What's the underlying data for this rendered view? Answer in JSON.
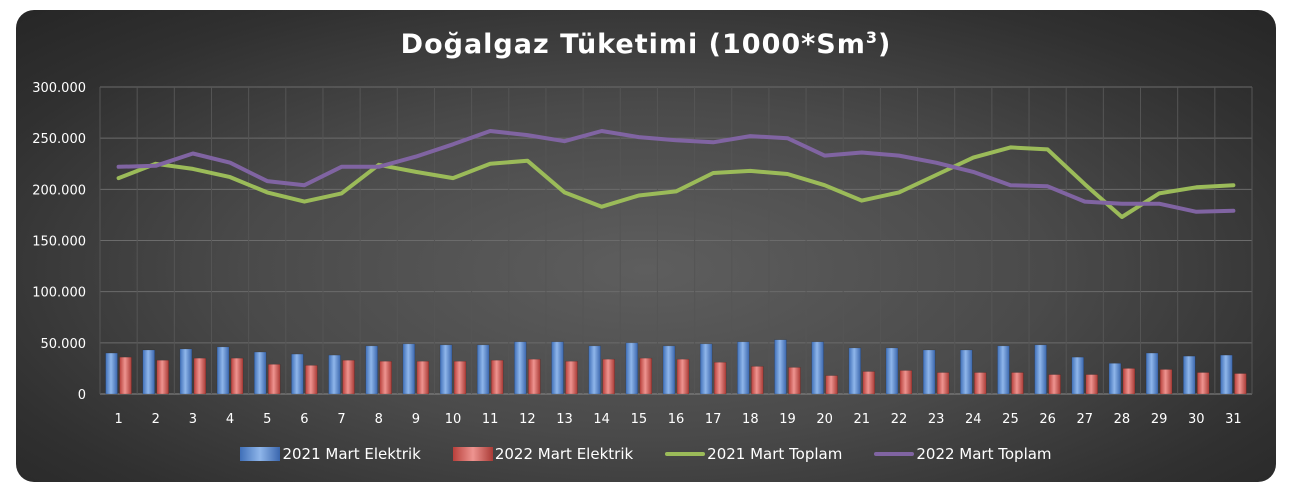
{
  "chart_data": {
    "type": "bar",
    "title": "Doğalgaz Tüketimi (1000*Sm",
    "title_superscript": "3",
    "title_suffix": ")",
    "categories": [
      "1",
      "2",
      "3",
      "4",
      "5",
      "6",
      "7",
      "8",
      "9",
      "10",
      "11",
      "12",
      "13",
      "14",
      "15",
      "16",
      "17",
      "18",
      "19",
      "20",
      "21",
      "22",
      "23",
      "24",
      "25",
      "26",
      "27",
      "28",
      "29",
      "30",
      "31"
    ],
    "y_ticks": [
      "0",
      "50.000",
      "100.000",
      "150.000",
      "200.000",
      "250.000",
      "300.000"
    ],
    "ylim": [
      0,
      300000
    ],
    "grid": true,
    "legend_position": "bottom",
    "series": [
      {
        "name": "2021 Mart Elektrik",
        "type": "bar",
        "color": "#5b8fd6",
        "values": [
          40000,
          43000,
          44000,
          46000,
          41000,
          39000,
          38000,
          47000,
          49000,
          48000,
          48000,
          51000,
          51000,
          47000,
          50000,
          47000,
          49000,
          51000,
          53000,
          51000,
          45000,
          45000,
          43000,
          43000,
          47000,
          48000,
          36000,
          30000,
          40000,
          37000,
          38000
        ]
      },
      {
        "name": "2022 Mart Elektrik",
        "type": "bar",
        "color": "#d9605a",
        "values": [
          36000,
          33000,
          35000,
          35000,
          29000,
          28000,
          33000,
          32000,
          32000,
          32000,
          33000,
          34000,
          32000,
          34000,
          35000,
          34000,
          31000,
          27000,
          26000,
          18000,
          22000,
          23000,
          21000,
          21000,
          21000,
          19000,
          19000,
          25000,
          24000,
          21000,
          20000
        ]
      },
      {
        "name": "2021 Mart Toplam",
        "type": "line",
        "color": "#9bbb59",
        "values": [
          211000,
          225000,
          220000,
          212000,
          197000,
          188000,
          196000,
          224000,
          217000,
          211000,
          225000,
          228000,
          197000,
          183000,
          194000,
          198000,
          216000,
          218000,
          215000,
          204000,
          189000,
          197000,
          214000,
          231000,
          241000,
          239000,
          205000,
          173000,
          196000,
          202000,
          204000
        ]
      },
      {
        "name": "2022 Mart Toplam",
        "type": "line",
        "color": "#8064a2",
        "values": [
          222000,
          223000,
          235000,
          226000,
          208000,
          204000,
          222000,
          222000,
          232000,
          244000,
          257000,
          253000,
          247000,
          257000,
          251000,
          248000,
          246000,
          252000,
          250000,
          233000,
          236000,
          233000,
          226000,
          217000,
          204000,
          203000,
          188000,
          186000,
          186000,
          178000,
          179000
        ]
      }
    ]
  }
}
